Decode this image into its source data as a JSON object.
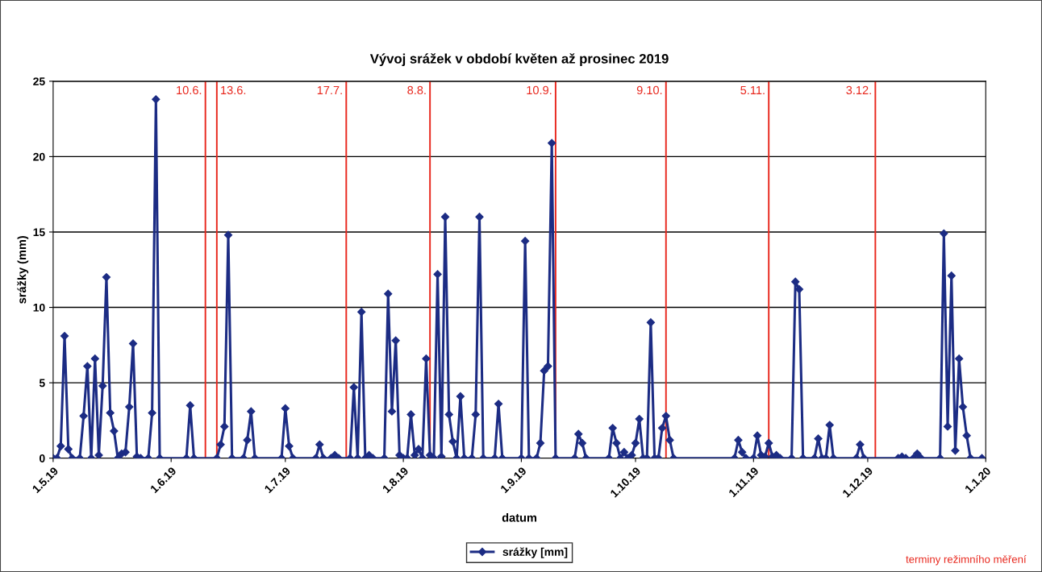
{
  "chart_data": {
    "type": "line",
    "title": "Vývoj srážek v období květen až prosinec 2019",
    "xlabel": "datum",
    "ylabel": "srážky (mm)",
    "x": [
      "2019-05-01",
      "2019-05-02",
      "2019-05-03",
      "2019-05-04",
      "2019-05-05",
      "2019-05-06",
      "2019-05-08",
      "2019-05-09",
      "2019-05-10",
      "2019-05-11",
      "2019-05-12",
      "2019-05-13",
      "2019-05-14",
      "2019-05-15",
      "2019-05-16",
      "2019-05-17",
      "2019-05-18",
      "2019-05-19",
      "2019-05-20",
      "2019-05-21",
      "2019-05-22",
      "2019-05-23",
      "2019-05-24",
      "2019-05-26",
      "2019-05-27",
      "2019-05-28",
      "2019-05-29",
      "2019-06-05",
      "2019-06-06",
      "2019-06-07",
      "2019-06-13",
      "2019-06-14",
      "2019-06-15",
      "2019-06-16",
      "2019-06-17",
      "2019-06-20",
      "2019-06-21",
      "2019-06-22",
      "2019-06-23",
      "2019-06-30",
      "2019-07-01",
      "2019-07-02",
      "2019-07-03",
      "2019-07-09",
      "2019-07-10",
      "2019-07-11",
      "2019-07-13",
      "2019-07-14",
      "2019-07-15",
      "2019-07-18",
      "2019-07-19",
      "2019-07-20",
      "2019-07-21",
      "2019-07-22",
      "2019-07-23",
      "2019-07-24",
      "2019-07-27",
      "2019-07-28",
      "2019-07-29",
      "2019-07-30",
      "2019-07-31",
      "2019-08-01",
      "2019-08-02",
      "2019-08-03",
      "2019-08-04",
      "2019-08-05",
      "2019-08-06",
      "2019-08-07",
      "2019-08-08",
      "2019-08-09",
      "2019-08-10",
      "2019-08-11",
      "2019-08-12",
      "2019-08-13",
      "2019-08-14",
      "2019-08-15",
      "2019-08-16",
      "2019-08-17",
      "2019-08-19",
      "2019-08-20",
      "2019-08-21",
      "2019-08-22",
      "2019-08-25",
      "2019-08-26",
      "2019-08-27",
      "2019-09-01",
      "2019-09-02",
      "2019-09-03",
      "2019-09-05",
      "2019-09-06",
      "2019-09-07",
      "2019-09-08",
      "2019-09-09",
      "2019-09-10",
      "2019-09-15",
      "2019-09-16",
      "2019-09-17",
      "2019-09-18",
      "2019-09-24",
      "2019-09-25",
      "2019-09-26",
      "2019-09-27",
      "2019-09-28",
      "2019-09-29",
      "2019-09-30",
      "2019-10-01",
      "2019-10-02",
      "2019-10-03",
      "2019-10-04",
      "2019-10-05",
      "2019-10-06",
      "2019-10-07",
      "2019-10-08",
      "2019-10-09",
      "2019-10-10",
      "2019-10-11",
      "2019-10-27",
      "2019-10-28",
      "2019-10-29",
      "2019-10-30",
      "2019-11-01",
      "2019-11-02",
      "2019-11-03",
      "2019-11-04",
      "2019-11-05",
      "2019-11-06",
      "2019-11-07",
      "2019-11-08",
      "2019-11-11",
      "2019-11-12",
      "2019-11-13",
      "2019-11-14",
      "2019-11-17",
      "2019-11-18",
      "2019-11-19",
      "2019-11-20",
      "2019-11-21",
      "2019-11-22",
      "2019-11-28",
      "2019-11-29",
      "2019-11-30",
      "2019-12-09",
      "2019-12-10",
      "2019-12-11",
      "2019-12-13",
      "2019-12-14",
      "2019-12-15",
      "2019-12-20",
      "2019-12-21",
      "2019-12-22",
      "2019-12-23",
      "2019-12-24",
      "2019-12-25",
      "2019-12-26",
      "2019-12-27",
      "2019-12-28",
      "2019-12-31"
    ],
    "series": [
      {
        "name": "srážky [mm]",
        "color": "#1c2c84",
        "values": [
          0,
          0,
          0.8,
          8.1,
          0.6,
          0,
          0,
          2.8,
          6.1,
          0,
          6.6,
          0.2,
          4.8,
          12.0,
          3.0,
          1.8,
          0,
          0.3,
          0.4,
          3.4,
          7.6,
          0.1,
          0,
          0,
          3.0,
          23.8,
          0,
          0,
          3.5,
          0,
          0,
          0.9,
          2.1,
          14.8,
          0,
          0,
          1.2,
          3.1,
          0,
          0,
          3.3,
          0.8,
          0,
          0,
          0.9,
          0,
          0,
          0.2,
          0,
          0,
          4.7,
          0,
          9.7,
          0,
          0.2,
          0,
          0,
          10.9,
          3.1,
          7.8,
          0.2,
          0,
          0,
          2.9,
          0.2,
          0.6,
          0,
          6.6,
          0.2,
          0,
          12.2,
          0.1,
          16.0,
          2.9,
          1.1,
          0,
          4.1,
          0,
          0,
          2.9,
          16.0,
          0,
          0,
          3.6,
          0,
          0,
          14.4,
          0,
          0,
          1.0,
          5.8,
          6.1,
          20.9,
          0,
          0,
          1.6,
          1.0,
          0,
          0,
          2.0,
          1.0,
          0,
          0.4,
          0,
          0.2,
          1.0,
          2.6,
          0,
          0,
          9.0,
          0,
          0,
          2.0,
          2.8,
          1.2,
          0,
          0,
          1.2,
          0.4,
          0,
          0,
          1.5,
          0.2,
          0.1,
          1.0,
          0.1,
          0.2,
          0,
          0,
          11.7,
          11.2,
          0,
          0,
          1.3,
          0,
          0,
          2.2,
          0,
          0,
          0.9,
          0,
          0,
          0.1,
          0,
          0,
          0.3,
          0,
          0,
          14.9,
          2.1,
          12.1,
          0.5,
          6.6,
          3.4,
          1.5,
          0,
          0
        ]
      }
    ],
    "xlim": [
      "2019-05-01",
      "2020-01-01"
    ],
    "xticks": [
      {
        "value": "2019-05-01",
        "label": "1.5.19"
      },
      {
        "value": "2019-06-01",
        "label": "1.6.19"
      },
      {
        "value": "2019-07-01",
        "label": "1.7.19"
      },
      {
        "value": "2019-08-01",
        "label": "1.8.19"
      },
      {
        "value": "2019-09-01",
        "label": "1.9.19"
      },
      {
        "value": "2019-10-01",
        "label": "1.10.19"
      },
      {
        "value": "2019-11-01",
        "label": "1.11.19"
      },
      {
        "value": "2019-12-01",
        "label": "1.12.19"
      },
      {
        "value": "2020-01-01",
        "label": "1.1.20"
      }
    ],
    "ylim": [
      0,
      25
    ],
    "yticks": [
      0,
      5,
      10,
      15,
      20,
      25
    ],
    "ref_lines": [
      {
        "axis": "x",
        "value": "2019-06-10",
        "label": "10.6.",
        "color": "#e8281e"
      },
      {
        "axis": "x",
        "value": "2019-06-13",
        "label": "13.6.",
        "color": "#e8281e"
      },
      {
        "axis": "x",
        "value": "2019-07-17",
        "label": "17.7.",
        "color": "#e8281e"
      },
      {
        "axis": "x",
        "value": "2019-08-08",
        "label": "8.8.",
        "color": "#e8281e"
      },
      {
        "axis": "x",
        "value": "2019-09-10",
        "label": "10.9.",
        "color": "#e8281e"
      },
      {
        "axis": "x",
        "value": "2019-10-09",
        "label": "9.10.",
        "color": "#e8281e"
      },
      {
        "axis": "x",
        "value": "2019-11-05",
        "label": "5.11.",
        "color": "#e8281e"
      },
      {
        "axis": "x",
        "value": "2019-12-03",
        "label": "3.12.",
        "color": "#e8281e"
      }
    ],
    "annotations": [
      "terminy režimního měření"
    ],
    "grid": "y",
    "legend": "bottom",
    "marker": "diamond",
    "line_style": "solid"
  }
}
